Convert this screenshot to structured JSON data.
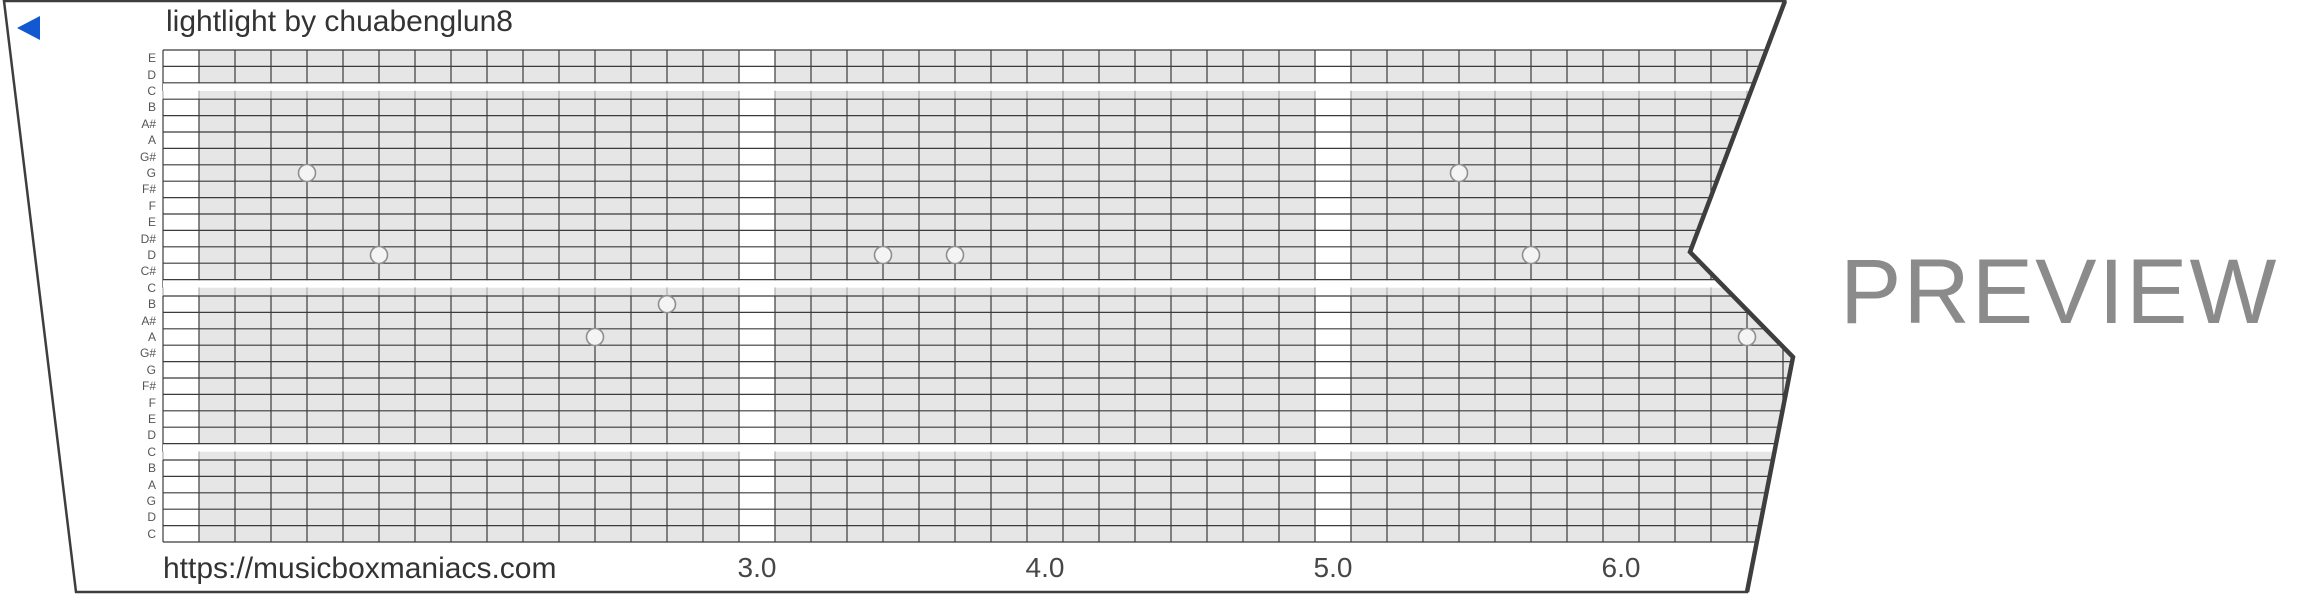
{
  "header": {
    "title": "lightlight by chuabenglun8"
  },
  "footer": {
    "url": "https://musicboxmaniacs.com"
  },
  "watermark": "PREVIEW",
  "icons": {
    "direction_marker": "left-pointing-triangle"
  },
  "colors": {
    "accent_blue": "#1358d3",
    "text_dark": "#333333",
    "grid_fill": "#e6e6e6",
    "grid_line_dark": "#3b3b3b",
    "grid_line_light": "#c5c5c5",
    "strip_outline": "#3e3e3e",
    "note_fill": "#f4f4f4",
    "note_stroke": "#8f8f8f",
    "watermark_gray": "#8b8b8b"
  },
  "chart_data": {
    "type": "scatter",
    "subtype": "music-box-piano-roll",
    "title": "lightlight by chuabenglun8",
    "row_labels": [
      "E",
      "D",
      "C",
      "B",
      "A#",
      "A",
      "G#",
      "G",
      "F#",
      "F",
      "E",
      "D#",
      "D",
      "C#",
      "C",
      "B",
      "A#",
      "A",
      "G#",
      "G",
      "F#",
      "F",
      "E",
      "D",
      "C",
      "B",
      "A",
      "G",
      "D",
      "C"
    ],
    "octave_break_rows": [
      2,
      14,
      24
    ],
    "x_tick_labels": [
      "3.0",
      "4.0",
      "5.0",
      "6.0"
    ],
    "x_tick_beats": [
      3,
      4,
      5,
      6
    ],
    "white_column_beats": [
      1,
      3,
      5
    ],
    "columns_per_beat": 8,
    "first_visible_beat": 1.0,
    "xlim": [
      1.0,
      6.6
    ],
    "grid": true,
    "notes": [
      {
        "beat": 1.5,
        "row": 7,
        "pitch": "G5"
      },
      {
        "beat": 1.75,
        "row": 12,
        "pitch": "D5"
      },
      {
        "beat": 2.5,
        "row": 17,
        "pitch": "A4"
      },
      {
        "beat": 2.75,
        "row": 15,
        "pitch": "B4"
      },
      {
        "beat": 3.5,
        "row": 12,
        "pitch": "D5"
      },
      {
        "beat": 3.75,
        "row": 12,
        "pitch": "D5"
      },
      {
        "beat": 5.5,
        "row": 7,
        "pitch": "G5"
      },
      {
        "beat": 5.75,
        "row": 12,
        "pitch": "D5"
      },
      {
        "beat": 6.5,
        "row": 17,
        "pitch": "A4"
      }
    ]
  }
}
